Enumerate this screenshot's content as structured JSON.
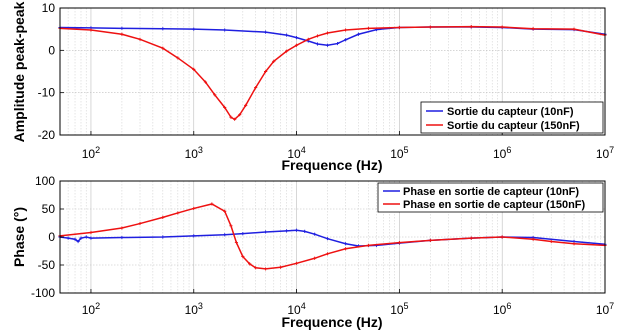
{
  "chart_data": [
    {
      "type": "line",
      "xlabel": "Frequence (Hz)",
      "ylabel": "Amplitude peak-peak",
      "xscale": "log",
      "xlim": [
        50,
        10000000
      ],
      "ylim": [
        -20,
        10
      ],
      "xticks": [
        100,
        1000,
        10000,
        100000,
        1000000,
        10000000
      ],
      "xtick_labels": [
        {
          "base": "10",
          "exp": "2"
        },
        {
          "base": "10",
          "exp": "3"
        },
        {
          "base": "10",
          "exp": "4"
        },
        {
          "base": "10",
          "exp": "5"
        },
        {
          "base": "10",
          "exp": "6"
        },
        {
          "base": "10",
          "exp": "7"
        }
      ],
      "yticks": [
        -20,
        -10,
        0,
        10
      ],
      "ytick_labels": [
        "-20",
        "-10",
        "0",
        "10"
      ],
      "grid": true,
      "legend_position": "bottom-right",
      "series": [
        {
          "name": "Sortie du capteur (10nF)",
          "color": "#1f1fe0",
          "x": [
            50,
            100,
            200,
            500,
            1000,
            2000,
            5000,
            8000,
            10000,
            13000,
            16000,
            20000,
            25000,
            30000,
            40000,
            60000,
            100000,
            200000,
            500000,
            1000000,
            2000000,
            5000000,
            10000000
          ],
          "y": [
            5.4,
            5.3,
            5.2,
            5.1,
            5.0,
            4.8,
            4.3,
            3.6,
            3.0,
            2.2,
            1.5,
            1.2,
            1.6,
            2.5,
            3.8,
            4.9,
            5.4,
            5.5,
            5.5,
            5.4,
            5.0,
            4.9,
            3.8
          ]
        },
        {
          "name": "Sortie du capteur (150nF)",
          "color": "#ee1111",
          "x": [
            50,
            100,
            200,
            300,
            500,
            700,
            1000,
            1300,
            1600,
            2000,
            2300,
            2500,
            2800,
            3200,
            4000,
            5000,
            6000,
            8000,
            10000,
            13000,
            16000,
            20000,
            30000,
            50000,
            100000,
            200000,
            500000,
            1000000,
            2000000,
            5000000,
            10000000
          ],
          "y": [
            5.2,
            4.8,
            3.8,
            2.6,
            0.5,
            -1.8,
            -4.5,
            -7.5,
            -10.5,
            -13.5,
            -15.8,
            -16.3,
            -15.2,
            -13.0,
            -8.8,
            -5.0,
            -2.6,
            -0.2,
            1.2,
            2.6,
            3.4,
            4.1,
            4.8,
            5.2,
            5.4,
            5.5,
            5.6,
            5.5,
            5.1,
            5.0,
            3.6
          ]
        }
      ]
    },
    {
      "type": "line",
      "xlabel": "Frequence (Hz)",
      "ylabel": "Phase (°)",
      "xscale": "log",
      "xlim": [
        50,
        10000000
      ],
      "ylim": [
        -100,
        100
      ],
      "xticks": [
        100,
        1000,
        10000,
        100000,
        1000000,
        10000000
      ],
      "xtick_labels": [
        {
          "base": "10",
          "exp": "2"
        },
        {
          "base": "10",
          "exp": "3"
        },
        {
          "base": "10",
          "exp": "4"
        },
        {
          "base": "10",
          "exp": "5"
        },
        {
          "base": "10",
          "exp": "6"
        },
        {
          "base": "10",
          "exp": "7"
        }
      ],
      "yticks": [
        -100,
        -50,
        0,
        50,
        100
      ],
      "ytick_labels": [
        "-100",
        "-50",
        "0",
        "50",
        "100"
      ],
      "grid": true,
      "legend_position": "top-right",
      "series": [
        {
          "name": "Phase en sortie de capteur (10nF)",
          "color": "#1f1fe0",
          "x": [
            50,
            60,
            70,
            75,
            80,
            90,
            100,
            200,
            500,
            1000,
            2000,
            3000,
            5000,
            8000,
            10000,
            12000,
            15000,
            20000,
            30000,
            40000,
            60000,
            100000,
            200000,
            500000,
            1000000,
            2000000,
            5000000,
            10000000
          ],
          "y": [
            0,
            -2,
            -4,
            -8,
            -2,
            0,
            -2,
            -1,
            0,
            2,
            4,
            6,
            9,
            11,
            12,
            10,
            5,
            -3,
            -12,
            -16,
            -15,
            -11,
            -6,
            -2,
            0,
            -1,
            -8,
            -13
          ]
        },
        {
          "name": "Phase en sortie de capteur (150nF)",
          "color": "#ee1111",
          "x": [
            50,
            100,
            200,
            300,
            500,
            700,
            1000,
            1500,
            2000,
            2300,
            2600,
            3000,
            3500,
            4000,
            5000,
            7000,
            10000,
            15000,
            20000,
            30000,
            50000,
            100000,
            200000,
            500000,
            1000000,
            2000000,
            3000000,
            5000000,
            10000000
          ],
          "y": [
            2,
            8,
            16,
            24,
            35,
            43,
            51,
            59,
            46,
            20,
            -10,
            -35,
            -48,
            -55,
            -57,
            -54,
            -47,
            -38,
            -30,
            -21,
            -15,
            -10,
            -6,
            -2,
            0,
            -4,
            -8,
            -12,
            -15
          ]
        }
      ]
    }
  ]
}
